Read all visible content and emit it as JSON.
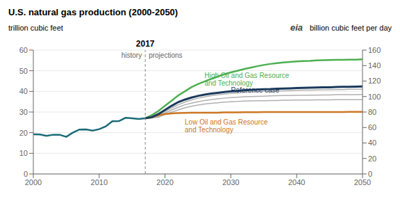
{
  "chart_data": {
    "type": "line",
    "title": "U.S. natural gas production (2000-2050)",
    "ylabel": "trillion cubic feet",
    "y2label": "billion cubic feet per day",
    "x": [
      2000,
      2001,
      2002,
      2003,
      2004,
      2005,
      2006,
      2007,
      2008,
      2009,
      2010,
      2011,
      2012,
      2013,
      2014,
      2015,
      2016,
      2017,
      2018,
      2019,
      2020,
      2021,
      2022,
      2023,
      2024,
      2025,
      2026,
      2027,
      2028,
      2029,
      2030,
      2031,
      2032,
      2033,
      2034,
      2035,
      2036,
      2037,
      2038,
      2039,
      2040,
      2041,
      2042,
      2043,
      2044,
      2045,
      2046,
      2047,
      2048,
      2049,
      2050
    ],
    "xlim": [
      2000,
      2050
    ],
    "xticks": [
      2000,
      2010,
      2020,
      2030,
      2040,
      2050
    ],
    "ylim": [
      0,
      60
    ],
    "yticks": [
      0,
      10,
      20,
      30,
      40,
      50,
      60
    ],
    "y2lim": [
      0,
      160
    ],
    "y2ticks": [
      0,
      20,
      40,
      60,
      80,
      100,
      120,
      140,
      160
    ],
    "grid": true,
    "series": [
      {
        "color": "#1a6b78",
        "values": [
          19.2,
          19.1,
          18.5,
          19.0,
          19.0,
          18.0,
          20.0,
          21.5,
          21.6,
          21.0,
          21.7,
          23.0,
          25.5,
          25.6,
          27.2,
          27.0,
          26.6,
          27.0,
          null,
          null,
          null,
          null,
          null,
          null,
          null,
          null,
          null,
          null,
          null,
          null,
          null,
          null,
          null,
          null,
          null,
          null,
          null,
          null,
          null,
          null,
          null,
          null,
          null,
          null,
          null,
          null,
          null,
          null,
          null,
          null,
          null
        ]
      },
      {
        "color": "#b0b0b0",
        "values": [
          null,
          null,
          null,
          null,
          null,
          null,
          null,
          null,
          null,
          null,
          null,
          null,
          null,
          null,
          null,
          null,
          null,
          27.0,
          27.3,
          28.5,
          30.2,
          32.0,
          33.5,
          34.8,
          35.8,
          36.7,
          37.3,
          37.9,
          38.3,
          38.7,
          39.0,
          39.2,
          39.5,
          39.7,
          39.9,
          40.0,
          40.1,
          40.2,
          40.3,
          40.4,
          40.5,
          40.6,
          40.6,
          40.7,
          40.8,
          40.8,
          40.9,
          40.9,
          41.0,
          41.0,
          41.0
        ]
      },
      {
        "color": "#b0b0b0",
        "values": [
          null,
          null,
          null,
          null,
          null,
          null,
          null,
          null,
          null,
          null,
          null,
          null,
          null,
          null,
          null,
          null,
          null,
          27.0,
          27.2,
          28.0,
          29.5,
          31.0,
          32.3,
          33.5,
          34.3,
          35.0,
          35.6,
          36.0,
          36.4,
          36.7,
          37.0,
          37.2,
          37.4,
          37.5,
          37.6,
          37.7,
          37.8,
          37.9,
          38.0,
          38.0,
          38.1,
          38.1,
          38.2,
          38.2,
          38.3,
          38.3,
          38.4,
          38.4,
          38.4,
          38.4,
          38.5
        ]
      },
      {
        "color": "#b0b0b0",
        "values": [
          null,
          null,
          null,
          null,
          null,
          null,
          null,
          null,
          null,
          null,
          null,
          null,
          null,
          null,
          null,
          null,
          null,
          27.0,
          27.1,
          27.5,
          28.8,
          30.0,
          31.0,
          32.0,
          32.8,
          33.4,
          33.9,
          34.2,
          34.5,
          34.8,
          35.0,
          35.1,
          35.3,
          35.4,
          35.5,
          35.5,
          35.6,
          35.6,
          35.7,
          35.7,
          35.8,
          35.8,
          35.8,
          35.9,
          35.9,
          35.9,
          36.0,
          36.0,
          36.0,
          36.0,
          36.0
        ]
      },
      {
        "color": "#4caf50",
        "values": [
          null,
          null,
          null,
          null,
          null,
          null,
          null,
          null,
          null,
          null,
          null,
          null,
          null,
          null,
          null,
          null,
          null,
          27.0,
          28.5,
          30.5,
          33.0,
          35.5,
          38.0,
          40.0,
          42.0,
          43.5,
          44.8,
          46.0,
          47.2,
          48.3,
          49.2,
          50.0,
          50.8,
          51.5,
          52.2,
          52.8,
          53.3,
          53.7,
          54.0,
          54.3,
          54.5,
          54.7,
          54.8,
          55.0,
          55.1,
          55.2,
          55.3,
          55.3,
          55.4,
          55.4,
          55.5
        ]
      },
      {
        "color": "#cc7722",
        "values": [
          null,
          null,
          null,
          null,
          null,
          null,
          null,
          null,
          null,
          null,
          null,
          null,
          null,
          null,
          null,
          null,
          null,
          27.0,
          27.5,
          28.5,
          29.0,
          29.3,
          29.5,
          29.6,
          29.7,
          29.7,
          29.7,
          29.7,
          29.7,
          29.8,
          29.8,
          29.8,
          29.9,
          29.9,
          29.9,
          30.0,
          30.0,
          30.0,
          30.0,
          30.0,
          30.0,
          30.0,
          30.0,
          30.0,
          30.0,
          30.0,
          30.0,
          30.0,
          30.1,
          30.1,
          30.1
        ]
      },
      {
        "color": "#1a3a5c",
        "values": [
          null,
          null,
          null,
          null,
          null,
          null,
          null,
          null,
          null,
          null,
          null,
          null,
          null,
          null,
          null,
          null,
          null,
          27.0,
          27.5,
          29.0,
          31.0,
          33.0,
          34.8,
          36.0,
          37.0,
          37.8,
          38.4,
          38.9,
          39.3,
          39.7,
          40.0,
          40.2,
          40.5,
          40.7,
          40.9,
          41.0,
          41.1,
          41.3,
          41.4,
          41.5,
          41.6,
          41.7,
          41.8,
          41.9,
          42.0,
          42.0,
          42.1,
          42.2,
          42.2,
          42.3,
          42.4
        ]
      }
    ],
    "reference_lines": [
      {
        "x": 2017,
        "label": "2017",
        "left_text": "history",
        "right_text": "projections",
        "line_style": "dashed"
      }
    ],
    "annotations": [
      {
        "text": "eia"
      },
      {
        "text": "High Oil and Gas Resource\nand Technology",
        "x": 2026,
        "y": 49.5,
        "color": "#4caf50"
      },
      {
        "text": "Reference case",
        "x": 2030,
        "y": 42.5,
        "color": "#1a3a5c"
      },
      {
        "text": "Low Oil and Gas Resource\nand Technology",
        "x": 2023,
        "y": 27.0,
        "color": "#cc7722"
      }
    ]
  }
}
